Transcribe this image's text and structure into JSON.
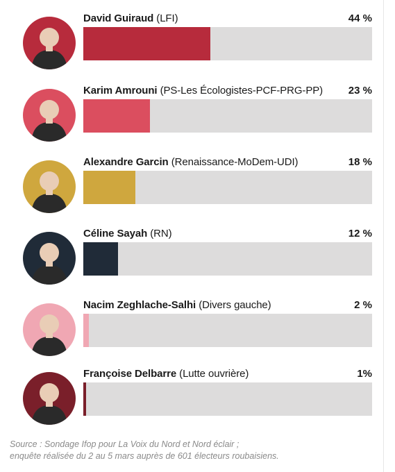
{
  "chart_data": {
    "type": "bar",
    "orientation": "horizontal",
    "unit": "%",
    "xlim": [
      0,
      100
    ],
    "grid": false,
    "legend": "none",
    "bars": [
      {
        "candidate": "David Guiraud",
        "party": "(LFI)",
        "value": 44,
        "label": "44 %",
        "color": "#b72b3c",
        "avatar_bg": "#b72b3c",
        "icon": "portrait-icon"
      },
      {
        "candidate": "Karim Amrouni",
        "party": "(PS-Les Écologistes-PCF-PRG-PP)",
        "value": 23,
        "label": "23 %",
        "color": "#db4e5f",
        "avatar_bg": "#db4e5f",
        "icon": "portrait-icon"
      },
      {
        "candidate": "Alexandre Garcin",
        "party": "(Renaissance-MoDem-UDI)",
        "value": 18,
        "label": "18 %",
        "color": "#cfa73e",
        "avatar_bg": "#cfa73e",
        "icon": "portrait-icon"
      },
      {
        "candidate": "Céline Sayah",
        "party": "(RN)",
        "value": 12,
        "label": "12 %",
        "color": "#202b38",
        "avatar_bg": "#202b38",
        "icon": "portrait-icon"
      },
      {
        "candidate": "Nacim Zeghlache-Salhi",
        "party": "(Divers gauche)",
        "value": 2,
        "label": "2 %",
        "color": "#f0a7b3",
        "avatar_bg": "#f0a7b3",
        "icon": "portrait-icon"
      },
      {
        "candidate": "Françoise Delbarre",
        "party": "(Lutte ouvrière)",
        "value": 1,
        "label": "1%",
        "color": "#7a1f2a",
        "avatar_bg": "#7a1f2a",
        "icon": "portrait-icon"
      }
    ],
    "source_line1": "Source : Sondage Ifop pour La Voix du Nord et Nord éclair ;",
    "source_line2": "enquête réalisée du 2 au 5 mars auprès de 601 électeurs roubaisiens."
  }
}
